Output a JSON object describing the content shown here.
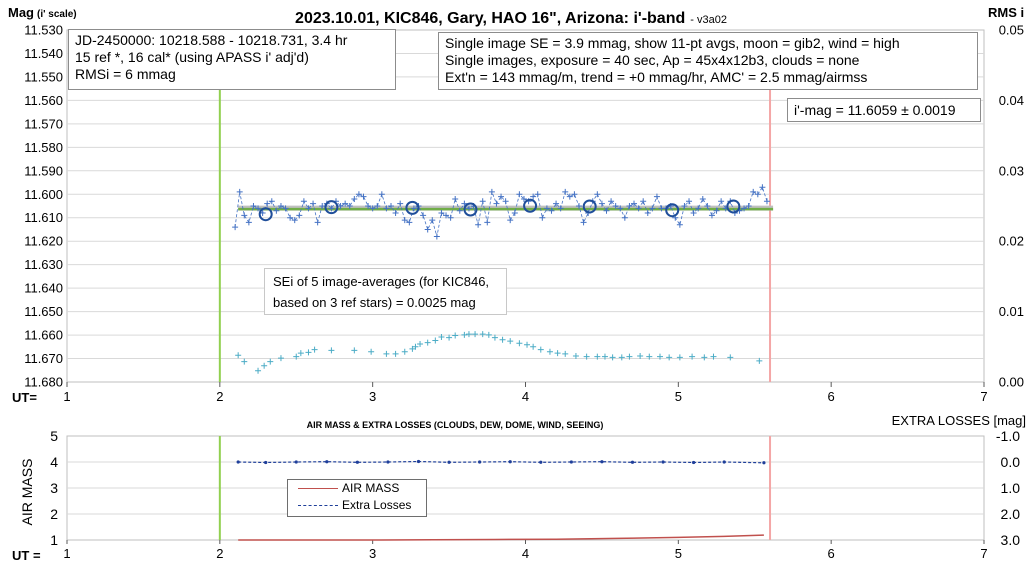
{
  "chart_data": [
    {
      "type": "scatter",
      "title": "2023.10.01, KIC846, Gary, HAO 16\", Arizona: i'-band",
      "title_suffix": "- v3a02",
      "ylabel": "Mag",
      "ylabel_suffix": "(i' scale)",
      "y2label": "RMS i",
      "xlabel": "UT=",
      "xlim": [
        1,
        7
      ],
      "ylim": [
        11.53,
        11.68
      ],
      "y_inverted": true,
      "y2lim": [
        0,
        0.05
      ],
      "x_ticks": [
        "1",
        "2",
        "3",
        "4",
        "5",
        "6",
        "7"
      ],
      "y_ticks": [
        "11.530",
        "11.540",
        "11.550",
        "11.560",
        "11.570",
        "11.580",
        "11.590",
        "11.600",
        "11.610",
        "11.620",
        "11.630",
        "11.640",
        "11.650",
        "11.660",
        "11.670",
        "11.680"
      ],
      "y2_ticks": [
        "0.05",
        "0.04",
        "0.03",
        "0.02",
        "0.01",
        "0.00"
      ],
      "grid": true,
      "vertical_markers": [
        {
          "x": 2.0,
          "color": "#92d050"
        },
        {
          "x": 5.6,
          "color": "#f4a6a6"
        }
      ],
      "fit_line": {
        "y": 11.6059,
        "x_range": [
          2.12,
          5.62
        ],
        "color": "#70ad47",
        "shadow_color": "#bfbfbf"
      },
      "series": [
        {
          "name": "single images",
          "color": "#4472c4",
          "x": [
            2.1,
            2.13,
            2.16,
            2.19,
            2.22,
            2.25,
            2.28,
            2.31,
            2.34,
            2.37,
            2.4,
            2.43,
            2.46,
            2.49,
            2.52,
            2.55,
            2.58,
            2.61,
            2.64,
            2.67,
            2.7,
            2.73,
            2.76,
            2.79,
            2.82,
            2.85,
            2.88,
            2.91,
            2.94,
            2.97,
            3.0,
            3.03,
            3.06,
            3.09,
            3.12,
            3.15,
            3.18,
            3.21,
            3.24,
            3.27,
            3.3,
            3.33,
            3.36,
            3.39,
            3.42,
            3.45,
            3.48,
            3.51,
            3.54,
            3.57,
            3.6,
            3.63,
            3.66,
            3.69,
            3.72,
            3.75,
            3.78,
            3.81,
            3.84,
            3.87,
            3.9,
            3.93,
            3.96,
            3.99,
            4.02,
            4.05,
            4.08,
            4.11,
            4.14,
            4.17,
            4.2,
            4.23,
            4.26,
            4.29,
            4.32,
            4.35,
            4.38,
            4.41,
            4.44,
            4.47,
            4.5,
            4.53,
            4.56,
            4.59,
            4.62,
            4.65,
            4.68,
            4.71,
            4.74,
            4.77,
            4.8,
            4.83,
            4.86,
            4.89,
            4.92,
            4.95,
            4.98,
            5.01,
            5.04,
            5.07,
            5.1,
            5.13,
            5.16,
            5.19,
            5.22,
            5.25,
            5.28,
            5.31,
            5.34,
            5.37,
            5.4,
            5.43,
            5.46,
            5.49,
            5.52,
            5.55,
            5.58
          ],
          "y": [
            11.614,
            11.599,
            11.609,
            11.612,
            11.605,
            11.606,
            11.608,
            11.604,
            11.603,
            11.607,
            11.605,
            11.606,
            11.61,
            11.611,
            11.609,
            11.603,
            11.606,
            11.604,
            11.612,
            11.605,
            11.604,
            11.606,
            11.603,
            11.605,
            11.604,
            11.605,
            11.602,
            11.6,
            11.601,
            11.605,
            11.606,
            11.605,
            11.6,
            11.606,
            11.605,
            11.608,
            11.604,
            11.611,
            11.612,
            11.606,
            11.605,
            11.609,
            11.615,
            11.611,
            11.618,
            11.608,
            11.609,
            11.61,
            11.602,
            11.607,
            11.604,
            11.606,
            11.605,
            11.613,
            11.603,
            11.612,
            11.599,
            11.604,
            11.601,
            11.603,
            11.611,
            11.608,
            11.6,
            11.602,
            11.603,
            11.601,
            11.6,
            11.61,
            11.606,
            11.607,
            11.604,
            11.606,
            11.599,
            11.601,
            11.6,
            11.605,
            11.612,
            11.608,
            11.603,
            11.6,
            11.604,
            11.607,
            11.603,
            11.605,
            11.606,
            11.61,
            11.605,
            11.604,
            11.606,
            11.603,
            11.608,
            11.606,
            11.601,
            11.606,
            11.606,
            11.605,
            11.61,
            11.613,
            11.605,
            11.603,
            11.608,
            11.606,
            11.602,
            11.605,
            11.609,
            11.607,
            11.603,
            11.606,
            11.603,
            11.608,
            11.607,
            11.606,
            11.605,
            11.599,
            11.6,
            11.597,
            11.603
          ]
        },
        {
          "name": "11-pt averages",
          "color": "#1f4e9a",
          "x": [
            2.3,
            2.73,
            3.26,
            3.64,
            4.03,
            4.42,
            4.96,
            5.36
          ],
          "y": [
            11.6085,
            11.6055,
            11.6058,
            11.6065,
            11.6049,
            11.6052,
            11.6068,
            11.6052
          ]
        },
        {
          "name": "RMS i",
          "axis": "y2",
          "color": "#4bacc6",
          "x": [
            2.12,
            2.16,
            2.25,
            2.29,
            2.33,
            2.4,
            2.5,
            2.53,
            2.58,
            2.62,
            2.73,
            2.88,
            2.99,
            3.09,
            3.15,
            3.21,
            3.26,
            3.28,
            3.31,
            3.36,
            3.41,
            3.45,
            3.5,
            3.54,
            3.6,
            3.63,
            3.67,
            3.72,
            3.76,
            3.8,
            3.85,
            3.9,
            3.96,
            4.01,
            4.05,
            4.1,
            4.16,
            4.21,
            4.26,
            4.33,
            4.4,
            4.47,
            4.52,
            4.57,
            4.63,
            4.68,
            4.75,
            4.81,
            4.88,
            4.94,
            5.01,
            5.09,
            5.17,
            5.23,
            5.34,
            5.53
          ],
          "y": [
            0.0038,
            0.0029,
            0.0016,
            0.0023,
            0.0029,
            0.0034,
            0.0036,
            0.0041,
            0.0042,
            0.0046,
            0.0045,
            0.0045,
            0.0043,
            0.004,
            0.004,
            0.0043,
            0.0047,
            0.005,
            0.0054,
            0.0056,
            0.0059,
            0.0064,
            0.0063,
            0.0066,
            0.0067,
            0.0068,
            0.0068,
            0.0068,
            0.0067,
            0.0063,
            0.006,
            0.0058,
            0.0055,
            0.0053,
            0.005,
            0.0046,
            0.0043,
            0.0041,
            0.004,
            0.0037,
            0.0036,
            0.0036,
            0.0036,
            0.0035,
            0.0035,
            0.0036,
            0.0037,
            0.0036,
            0.0036,
            0.0035,
            0.0035,
            0.0036,
            0.0035,
            0.0036,
            0.0035,
            0.003
          ]
        }
      ],
      "info_left": [
        "JD-2450000: 10218.588 - 10218.731, 3.4  hr",
        "15 ref *, 16 cal* (using APASS i' adj'd)",
        "RMSi = 6 mmag"
      ],
      "info_right": [
        "Single image SE = 3.9 mmag, show 11-pt avgs, moon = gib2, wind = high",
        "Single images, exposure = 40 sec, Ap = 45x4x12b3, clouds = none",
        "Ext'n = 143 mmag/m, trend = +0 mmag/hr, AMC' = 2.5 mmag/airmss"
      ],
      "result_label": "i'-mag = 11.6059 ± 0.0019",
      "sei_note": [
        "SEi of 5 image-averages (for KIC846,",
        "based on 3 ref stars) = 0.0025 mag"
      ]
    },
    {
      "type": "line",
      "title": "AIR MASS & EXTRA LOSSES (CLOUDS, DEW, DOME, WIND, SEEING)",
      "ylabel": "AIR MASS",
      "y2label": "EXTRA LOSSES [mag]",
      "xlabel": "UT =",
      "xlim": [
        1,
        7
      ],
      "ylim": [
        1,
        5
      ],
      "y2lim": [
        3.0,
        -1.0
      ],
      "x_ticks": [
        "1",
        "2",
        "3",
        "4",
        "5",
        "6",
        "7"
      ],
      "y_ticks": [
        "5",
        "4",
        "3",
        "2",
        "1"
      ],
      "y2_ticks": [
        "-1.0",
        "0.0",
        "1.0",
        "2.0",
        "3.0"
      ],
      "vertical_markers": [
        {
          "x": 2.0,
          "color": "#92d050"
        },
        {
          "x": 5.6,
          "color": "#f4a6a6"
        }
      ],
      "legend": [
        "AIR MASS",
        "Extra Losses"
      ],
      "series": [
        {
          "name": "AIR MASS",
          "color": "#c0504d",
          "x": [
            2.12,
            2.5,
            3.0,
            3.4,
            3.8,
            4.2,
            4.6,
            5.0,
            5.3,
            5.56
          ],
          "y": [
            1.0,
            1.0,
            1.0,
            1.01,
            1.02,
            1.03,
            1.06,
            1.1,
            1.14,
            1.19
          ]
        },
        {
          "name": "Extra Losses",
          "axis": "y2",
          "color": "#1f3f9a",
          "x": [
            2.12,
            2.3,
            2.5,
            2.7,
            2.9,
            3.1,
            3.3,
            3.5,
            3.7,
            3.9,
            4.1,
            4.3,
            4.5,
            4.7,
            4.9,
            5.1,
            5.3,
            5.56
          ],
          "y": [
            0.0,
            0.02,
            0.0,
            -0.01,
            0.01,
            0.0,
            -0.02,
            0.01,
            0.0,
            -0.01,
            0.01,
            0.0,
            -0.01,
            0.01,
            0.0,
            0.02,
            0.0,
            0.03
          ]
        }
      ]
    }
  ]
}
